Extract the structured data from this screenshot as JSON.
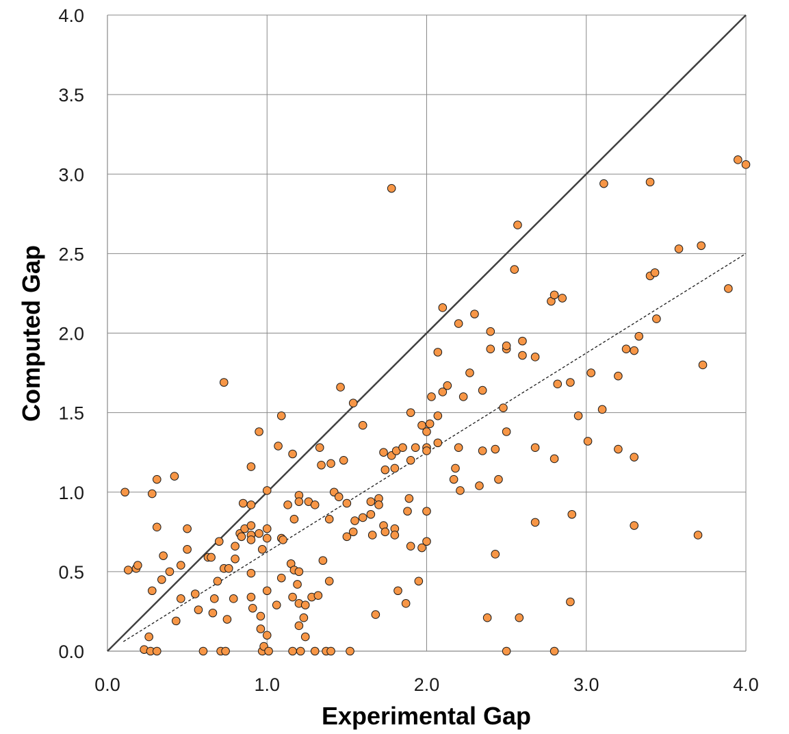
{
  "chart_data": {
    "type": "scatter",
    "xlabel": "Experimental Gap",
    "ylabel": "Computed Gap",
    "xlim": [
      0,
      4
    ],
    "ylim": [
      0,
      4
    ],
    "x_ticks": [
      "0.0",
      "1.0",
      "2.0",
      "3.0",
      "4.0"
    ],
    "y_ticks": [
      "0.0",
      "0.5",
      "1.0",
      "1.5",
      "2.0",
      "2.5",
      "3.0",
      "3.5",
      "4.0"
    ],
    "grid": true,
    "legend": "none",
    "colors": {
      "marker_fill": "#f79646",
      "marker_edge": "#1a1a1a",
      "identity_line": "#404040",
      "fit_line": "#1a1a1a"
    },
    "reference_lines": [
      {
        "kind": "identity",
        "style": "solid",
        "x": [
          0,
          4
        ],
        "y": [
          0,
          4
        ]
      },
      {
        "kind": "fit",
        "style": "dashed",
        "x": [
          0.1,
          4
        ],
        "y": [
          0.06,
          2.5
        ]
      }
    ],
    "series": [
      {
        "points": [
          [
            0.11,
            1.0
          ],
          [
            0.13,
            0.51
          ],
          [
            0.18,
            0.52
          ],
          [
            0.19,
            0.54
          ],
          [
            0.23,
            0.01
          ],
          [
            0.26,
            0.09
          ],
          [
            0.27,
            0.0
          ],
          [
            0.28,
            0.38
          ],
          [
            0.28,
            0.99
          ],
          [
            0.31,
            1.08
          ],
          [
            0.31,
            0.0
          ],
          [
            0.31,
            0.78
          ],
          [
            0.34,
            0.45
          ],
          [
            0.35,
            0.6
          ],
          [
            0.39,
            0.5
          ],
          [
            0.42,
            1.1
          ],
          [
            0.43,
            0.19
          ],
          [
            0.46,
            0.33
          ],
          [
            0.46,
            0.54
          ],
          [
            0.5,
            0.77
          ],
          [
            0.5,
            0.64
          ],
          [
            0.55,
            0.36
          ],
          [
            0.57,
            0.26
          ],
          [
            0.6,
            0.0
          ],
          [
            0.63,
            0.59
          ],
          [
            0.65,
            0.59
          ],
          [
            0.66,
            0.24
          ],
          [
            0.67,
            0.33
          ],
          [
            0.69,
            0.44
          ],
          [
            0.7,
            0.69
          ],
          [
            0.71,
            0.0
          ],
          [
            0.73,
            1.69
          ],
          [
            0.73,
            0.52
          ],
          [
            0.74,
            0.0
          ],
          [
            0.75,
            0.2
          ],
          [
            0.76,
            0.52
          ],
          [
            0.79,
            0.33
          ],
          [
            0.8,
            0.58
          ],
          [
            0.8,
            0.66
          ],
          [
            0.83,
            0.74
          ],
          [
            0.84,
            0.72
          ],
          [
            0.85,
            0.93
          ],
          [
            0.86,
            0.77
          ],
          [
            0.9,
            1.16
          ],
          [
            0.9,
            0.92
          ],
          [
            0.9,
            0.79
          ],
          [
            0.9,
            0.73
          ],
          [
            0.9,
            0.7
          ],
          [
            0.9,
            0.49
          ],
          [
            0.9,
            0.34
          ],
          [
            0.91,
            0.27
          ],
          [
            0.95,
            1.38
          ],
          [
            0.95,
            0.74
          ],
          [
            0.96,
            0.22
          ],
          [
            0.96,
            0.14
          ],
          [
            0.97,
            0.64
          ],
          [
            0.97,
            0.0
          ],
          [
            0.98,
            0.03
          ],
          [
            1.0,
            1.01
          ],
          [
            1.0,
            0.77
          ],
          [
            1.0,
            0.71
          ],
          [
            1.0,
            0.38
          ],
          [
            1.0,
            0.1
          ],
          [
            1.01,
            0.0
          ],
          [
            1.06,
            0.29
          ],
          [
            1.07,
            1.29
          ],
          [
            1.09,
            1.48
          ],
          [
            1.09,
            0.71
          ],
          [
            1.09,
            0.46
          ],
          [
            1.1,
            0.7
          ],
          [
            1.13,
            0.92
          ],
          [
            1.15,
            0.55
          ],
          [
            1.16,
            1.24
          ],
          [
            1.16,
            0.34
          ],
          [
            1.16,
            0.0
          ],
          [
            1.17,
            0.51
          ],
          [
            1.17,
            0.83
          ],
          [
            1.19,
            0.42
          ],
          [
            1.2,
            0.98
          ],
          [
            1.2,
            0.94
          ],
          [
            1.2,
            0.5
          ],
          [
            1.2,
            0.3
          ],
          [
            1.2,
            0.16
          ],
          [
            1.21,
            0.0
          ],
          [
            1.23,
            0.21
          ],
          [
            1.24,
            0.29
          ],
          [
            1.24,
            0.09
          ],
          [
            1.26,
            0.94
          ],
          [
            1.28,
            0.34
          ],
          [
            1.3,
            0.92
          ],
          [
            1.3,
            0.0
          ],
          [
            1.32,
            0.35
          ],
          [
            1.33,
            1.28
          ],
          [
            1.34,
            1.17
          ],
          [
            1.35,
            0.57
          ],
          [
            1.37,
            0.0
          ],
          [
            1.39,
            0.83
          ],
          [
            1.39,
            0.44
          ],
          [
            1.4,
            1.18
          ],
          [
            1.4,
            0.0
          ],
          [
            1.42,
            1.0
          ],
          [
            1.45,
            0.97
          ],
          [
            1.46,
            1.66
          ],
          [
            1.48,
            1.2
          ],
          [
            1.5,
            0.93
          ],
          [
            1.5,
            0.72
          ],
          [
            1.52,
            0.0
          ],
          [
            1.54,
            1.56
          ],
          [
            1.54,
            0.75
          ],
          [
            1.55,
            0.82
          ],
          [
            1.6,
            1.42
          ],
          [
            1.6,
            0.84
          ],
          [
            1.65,
            0.86
          ],
          [
            1.65,
            0.94
          ],
          [
            1.66,
            0.73
          ],
          [
            1.68,
            0.23
          ],
          [
            1.7,
            0.96
          ],
          [
            1.7,
            0.92
          ],
          [
            1.73,
            1.25
          ],
          [
            1.73,
            0.79
          ],
          [
            1.74,
            1.14
          ],
          [
            1.74,
            0.75
          ],
          [
            1.78,
            2.91
          ],
          [
            1.78,
            1.23
          ],
          [
            1.8,
            1.15
          ],
          [
            1.8,
            0.77
          ],
          [
            1.8,
            0.73
          ],
          [
            1.81,
            1.26
          ],
          [
            1.82,
            0.38
          ],
          [
            1.85,
            1.28
          ],
          [
            1.87,
            0.3
          ],
          [
            1.88,
            0.88
          ],
          [
            1.89,
            0.96
          ],
          [
            1.9,
            1.5
          ],
          [
            1.9,
            1.2
          ],
          [
            1.9,
            0.66
          ],
          [
            1.93,
            1.28
          ],
          [
            1.95,
            0.44
          ],
          [
            1.97,
            1.42
          ],
          [
            1.97,
            0.65
          ],
          [
            2.0,
            1.38
          ],
          [
            2.0,
            1.28
          ],
          [
            2.0,
            1.26
          ],
          [
            2.0,
            0.88
          ],
          [
            2.0,
            0.69
          ],
          [
            2.02,
            1.43
          ],
          [
            2.03,
            1.6
          ],
          [
            2.07,
            1.88
          ],
          [
            2.07,
            1.48
          ],
          [
            2.07,
            1.31
          ],
          [
            2.1,
            2.16
          ],
          [
            2.1,
            1.63
          ],
          [
            2.13,
            1.67
          ],
          [
            2.17,
            1.08
          ],
          [
            2.18,
            1.15
          ],
          [
            2.2,
            2.06
          ],
          [
            2.2,
            1.28
          ],
          [
            2.21,
            1.01
          ],
          [
            2.23,
            1.6
          ],
          [
            2.27,
            1.75
          ],
          [
            2.3,
            2.12
          ],
          [
            2.33,
            1.04
          ],
          [
            2.35,
            1.64
          ],
          [
            2.35,
            1.26
          ],
          [
            2.38,
            0.21
          ],
          [
            2.4,
            2.01
          ],
          [
            2.4,
            1.9
          ],
          [
            2.43,
            1.27
          ],
          [
            2.43,
            0.61
          ],
          [
            2.45,
            1.08
          ],
          [
            2.48,
            1.53
          ],
          [
            2.5,
            1.9
          ],
          [
            2.5,
            1.92
          ],
          [
            2.5,
            1.38
          ],
          [
            2.5,
            0.0
          ],
          [
            2.55,
            2.4
          ],
          [
            2.57,
            2.68
          ],
          [
            2.58,
            0.21
          ],
          [
            2.6,
            1.95
          ],
          [
            2.6,
            1.86
          ],
          [
            2.68,
            1.85
          ],
          [
            2.68,
            1.28
          ],
          [
            2.68,
            0.81
          ],
          [
            2.78,
            2.2
          ],
          [
            2.8,
            2.24
          ],
          [
            2.8,
            1.21
          ],
          [
            2.8,
            0.0
          ],
          [
            2.82,
            1.68
          ],
          [
            2.85,
            2.22
          ],
          [
            2.9,
            1.69
          ],
          [
            2.9,
            0.31
          ],
          [
            2.91,
            0.86
          ],
          [
            2.95,
            1.48
          ],
          [
            3.01,
            1.32
          ],
          [
            3.03,
            1.75
          ],
          [
            3.1,
            1.52
          ],
          [
            3.11,
            2.94
          ],
          [
            3.2,
            1.73
          ],
          [
            3.2,
            1.27
          ],
          [
            3.25,
            1.9
          ],
          [
            3.3,
            1.89
          ],
          [
            3.3,
            1.22
          ],
          [
            3.3,
            0.79
          ],
          [
            3.33,
            1.98
          ],
          [
            3.4,
            2.95
          ],
          [
            3.4,
            2.36
          ],
          [
            3.43,
            2.38
          ],
          [
            3.44,
            2.09
          ],
          [
            3.58,
            2.53
          ],
          [
            3.7,
            0.73
          ],
          [
            3.72,
            2.55
          ],
          [
            3.73,
            1.8
          ],
          [
            3.89,
            2.28
          ],
          [
            3.95,
            3.09
          ],
          [
            4.0,
            3.06
          ]
        ]
      }
    ]
  }
}
